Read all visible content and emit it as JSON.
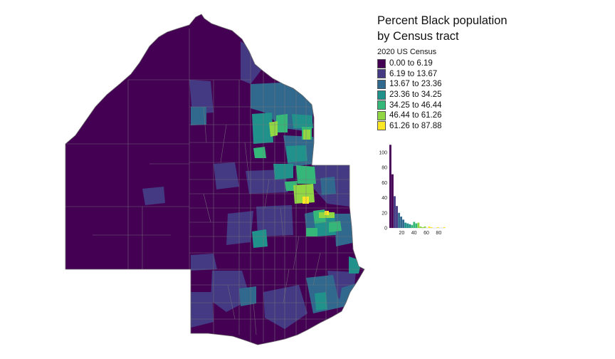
{
  "legend": {
    "title_line1": "Percent Black population",
    "title_line2": "by Census tract",
    "subtitle": "2020 US Census",
    "classes": [
      {
        "label": "0.00 to 6.19",
        "color": "#440154"
      },
      {
        "label": "6.19 to 13.67",
        "color": "#443983"
      },
      {
        "label": "13.67 to 23.36",
        "color": "#31688e"
      },
      {
        "label": "23.36 to 34.25",
        "color": "#21918c"
      },
      {
        "label": "34.25 to 46.44",
        "color": "#35b779"
      },
      {
        "label": "46.44 to 61.26",
        "color": "#90d743"
      },
      {
        "label": "61.26 to 87.88",
        "color": "#fde725"
      }
    ]
  },
  "chart_data": {
    "type": "bar",
    "title": "",
    "xlabel": "",
    "ylabel": "",
    "x_ticks": [
      20,
      40,
      60,
      80
    ],
    "y_ticks": [
      0,
      20,
      40,
      60,
      80,
      100
    ],
    "xlim": [
      0,
      90
    ],
    "ylim": [
      0,
      115
    ],
    "bin_width": 3.5,
    "bin_starts": [
      0,
      3.5,
      7,
      10.5,
      14,
      17.5,
      21,
      24.5,
      28,
      31.5,
      35,
      38.5,
      42,
      45.5,
      49,
      52.5,
      56,
      59.5,
      63,
      66.5,
      70,
      73.5,
      77,
      80.5,
      84,
      87.5
    ],
    "counts": [
      110,
      71,
      42,
      29,
      20,
      15,
      11,
      7,
      6,
      5,
      4,
      8,
      6,
      7,
      2,
      1,
      2,
      0,
      2,
      1,
      0,
      0,
      1,
      0,
      0,
      1
    ],
    "colors": [
      "#440154",
      "#440154",
      "#443983",
      "#443983",
      "#31688e",
      "#31688e",
      "#31688e",
      "#21918c",
      "#21918c",
      "#21918c",
      "#35b779",
      "#35b779",
      "#35b779",
      "#90d743",
      "#90d743",
      "#90d743",
      "#90d743",
      "#fde725",
      "#fde725",
      "#fde725",
      "#fde725",
      "#fde725",
      "#fde725",
      "#fde725",
      "#fde725",
      "#fde725"
    ]
  }
}
